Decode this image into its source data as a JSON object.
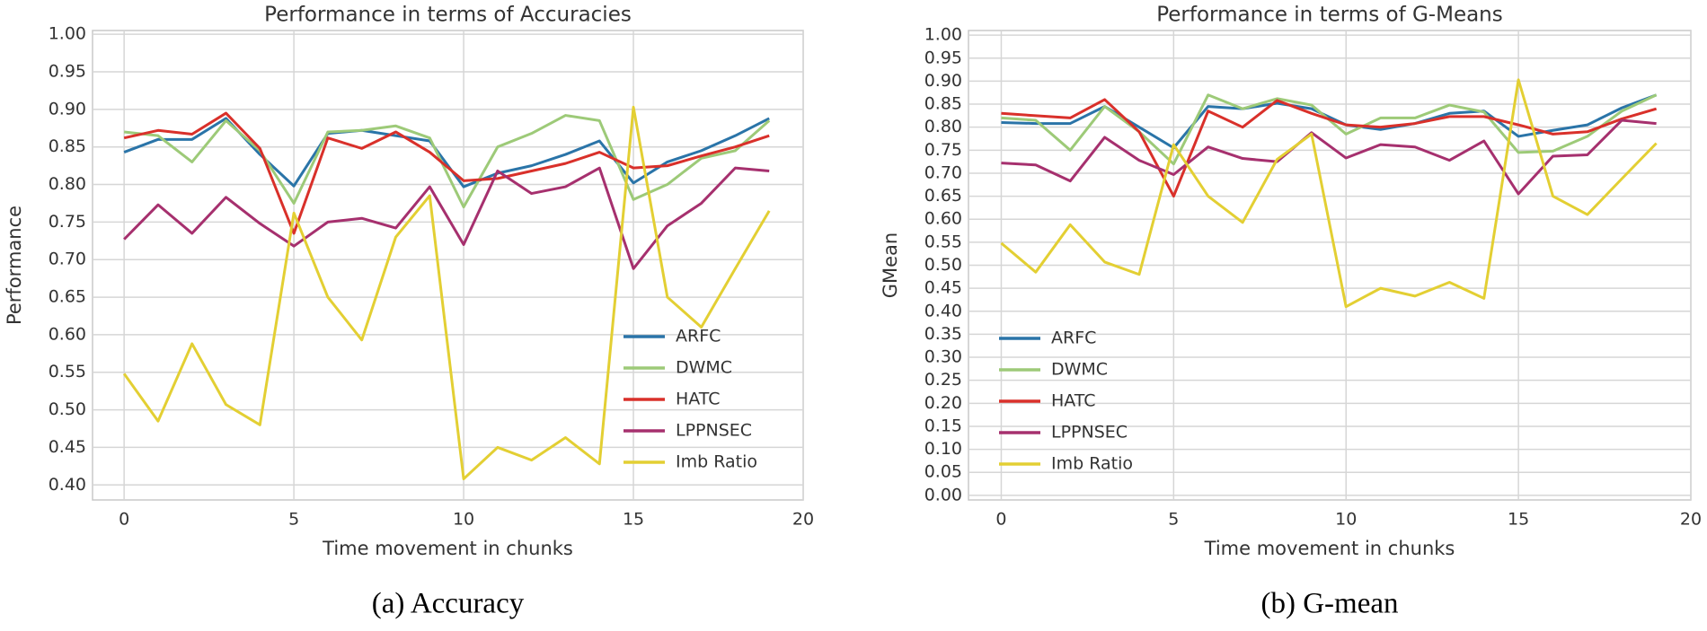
{
  "chart_data": [
    {
      "type": "line",
      "title": "Performance in terms of Accuracies",
      "xlabel": "Time movement in chunks",
      "ylabel": "Performance",
      "caption": "(a) Accuracy",
      "x": [
        0,
        1,
        2,
        3,
        4,
        5,
        6,
        7,
        8,
        9,
        10,
        11,
        12,
        13,
        14,
        15,
        16,
        17,
        18,
        19
      ],
      "xlim": [
        -0.93,
        20
      ],
      "xticks": [
        0,
        5,
        10,
        15,
        20
      ],
      "ylim": [
        0.38,
        1.005
      ],
      "yticks": [
        {
          "value": 0.4,
          "label": "0.40"
        },
        0.45,
        {
          "value": 0.5,
          "label": "0.50"
        },
        0.55,
        {
          "value": 0.6,
          "label": "0.60"
        },
        0.65,
        {
          "value": 0.7,
          "label": "0.70"
        },
        0.75,
        {
          "value": 0.8,
          "label": "0.80"
        },
        0.85,
        {
          "value": 0.9,
          "label": "0.90"
        },
        0.95,
        {
          "value": 1.0,
          "label": "1.00"
        }
      ],
      "grid": true,
      "legend": "lower right",
      "series": [
        {
          "name": "ARFC",
          "color": "#2a74a8",
          "values": [
            0.843,
            0.86,
            0.86,
            0.888,
            0.84,
            0.798,
            0.868,
            0.872,
            0.865,
            0.858,
            0.797,
            0.815,
            0.825,
            0.84,
            0.858,
            0.802,
            0.83,
            0.845,
            0.865,
            0.888
          ]
        },
        {
          "name": "DWMC",
          "color": "#9dca78",
          "values": [
            0.87,
            0.865,
            0.83,
            0.885,
            0.845,
            0.775,
            0.87,
            0.872,
            0.878,
            0.862,
            0.77,
            0.85,
            0.868,
            0.892,
            0.885,
            0.78,
            0.8,
            0.835,
            0.845,
            0.885
          ]
        },
        {
          "name": "HATC",
          "color": "#d9302a",
          "values": [
            0.862,
            0.872,
            0.867,
            0.895,
            0.848,
            0.735,
            0.862,
            0.848,
            0.87,
            0.843,
            0.805,
            0.808,
            0.818,
            0.828,
            0.843,
            0.822,
            0.825,
            0.838,
            0.85,
            0.865
          ]
        },
        {
          "name": "LPPNSEC",
          "color": "#a6306e",
          "values": [
            0.727,
            0.773,
            0.735,
            0.783,
            0.748,
            0.718,
            0.75,
            0.755,
            0.742,
            0.797,
            0.72,
            0.818,
            0.788,
            0.797,
            0.822,
            0.688,
            0.745,
            0.775,
            0.822,
            0.818
          ]
        },
        {
          "name": "Imb Ratio",
          "color": "#e3cf33",
          "values": [
            0.548,
            0.485,
            0.588,
            0.507,
            0.48,
            0.762,
            0.65,
            0.593,
            0.73,
            0.785,
            0.408,
            0.45,
            0.433,
            0.463,
            0.428,
            0.903,
            0.65,
            0.61,
            0.688,
            0.765
          ]
        }
      ]
    },
    {
      "type": "line",
      "title": "Performance in terms of G-Means",
      "xlabel": "Time movement in chunks",
      "ylabel": "GMean",
      "caption": "(b) G-mean",
      "x": [
        0,
        1,
        2,
        3,
        4,
        5,
        6,
        7,
        8,
        9,
        10,
        11,
        12,
        13,
        14,
        15,
        16,
        17,
        18,
        19
      ],
      "xlim": [
        -0.95,
        20
      ],
      "xticks": [
        0,
        5,
        10,
        15,
        20
      ],
      "ylim": [
        -0.01,
        1.01
      ],
      "yticks": [
        {
          "value": 0,
          "label": "0.00"
        },
        0.05,
        {
          "value": 0.1,
          "label": "0.10"
        },
        0.15,
        {
          "value": 0.2,
          "label": "0.20"
        },
        0.25,
        {
          "value": 0.3,
          "label": "0.30"
        },
        0.35,
        {
          "value": 0.4,
          "label": "0.40"
        },
        0.45,
        {
          "value": 0.5,
          "label": "0.50"
        },
        0.55,
        {
          "value": 0.6,
          "label": "0.60"
        },
        0.65,
        {
          "value": 0.7,
          "label": "0.70"
        },
        0.75,
        {
          "value": 0.8,
          "label": "0.80"
        },
        0.85,
        {
          "value": 0.9,
          "label": "0.90"
        },
        0.95,
        {
          "value": 1.0,
          "label": "1.00"
        }
      ],
      "grid": true,
      "legend": "center left",
      "series": [
        {
          "name": "ARFC",
          "color": "#2a74a8",
          "values": [
            0.81,
            0.808,
            0.808,
            0.845,
            0.8,
            0.755,
            0.845,
            0.84,
            0.852,
            0.84,
            0.805,
            0.795,
            0.808,
            0.83,
            0.835,
            0.78,
            0.793,
            0.805,
            0.842,
            0.87
          ]
        },
        {
          "name": "DWMC",
          "color": "#9dca78",
          "values": [
            0.82,
            0.815,
            0.75,
            0.845,
            0.79,
            0.72,
            0.87,
            0.84,
            0.862,
            0.848,
            0.785,
            0.82,
            0.82,
            0.848,
            0.833,
            0.745,
            0.748,
            0.78,
            0.835,
            0.87
          ]
        },
        {
          "name": "HATC",
          "color": "#d9302a",
          "values": [
            0.83,
            0.825,
            0.82,
            0.86,
            0.79,
            0.65,
            0.835,
            0.8,
            0.858,
            0.83,
            0.805,
            0.8,
            0.808,
            0.823,
            0.823,
            0.805,
            0.785,
            0.79,
            0.818,
            0.84
          ]
        },
        {
          "name": "LPPNSEC",
          "color": "#a6306e",
          "values": [
            0.722,
            0.718,
            0.683,
            0.778,
            0.728,
            0.697,
            0.757,
            0.732,
            0.725,
            0.788,
            0.733,
            0.762,
            0.757,
            0.728,
            0.77,
            0.655,
            0.737,
            0.74,
            0.815,
            0.808
          ]
        },
        {
          "name": "Imb Ratio",
          "color": "#e3cf33",
          "values": [
            0.548,
            0.485,
            0.588,
            0.507,
            0.48,
            0.762,
            0.65,
            0.593,
            0.73,
            0.785,
            0.41,
            0.45,
            0.433,
            0.463,
            0.428,
            0.903,
            0.65,
            0.61,
            0.688,
            0.765
          ]
        }
      ]
    }
  ]
}
